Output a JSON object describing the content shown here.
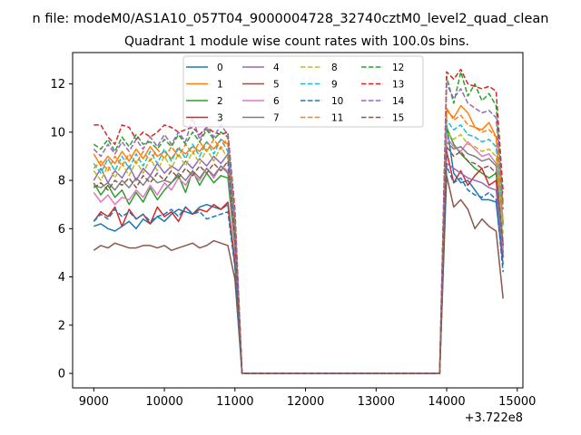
{
  "figure": {
    "suptitle": "n file: modeM0/AS1A10_057T04_9000004728_32740cztM0_level2_quad_clean",
    "offset_text": "+3.722e8"
  },
  "chart_data": {
    "type": "line",
    "title": "Quadrant 1 module wise count rates with 100.0s bins.",
    "xlabel": "",
    "ylabel": "",
    "x_offset": 372200000,
    "xlim": [
      8700,
      15080
    ],
    "ylim": [
      -0.6,
      13.3
    ],
    "xticks": [
      9000,
      10000,
      11000,
      12000,
      13000,
      14000,
      15000
    ],
    "yticks": [
      0,
      2,
      4,
      6,
      8,
      10,
      12
    ],
    "grid": false,
    "legend": "top-center",
    "x_times_a": [
      9000,
      9100,
      9200,
      9300,
      9400,
      9500,
      9600,
      9700,
      9800,
      9900,
      10000,
      10100,
      10200,
      10300,
      10400,
      10500,
      10600,
      10700,
      10800,
      10900,
      11000,
      11100
    ],
    "x_times_b": [
      13800,
      13900,
      14000,
      14100,
      14200,
      14300,
      14400,
      14500,
      14600,
      14700,
      14800
    ],
    "series": [
      {
        "name": "0",
        "color": "#1f77b4",
        "dash": false,
        "a": [
          6.1,
          6.2,
          6.0,
          5.9,
          6.1,
          6.3,
          6.0,
          6.4,
          6.2,
          6.5,
          6.3,
          6.6,
          6.8,
          6.7,
          6.6,
          6.9,
          7.0,
          6.9,
          6.8,
          7.0,
          4.5,
          0
        ],
        "b": [
          0,
          0,
          10.3,
          8.3,
          7.9,
          8.0,
          7.6,
          7.2,
          7.2,
          7.1,
          4.5
        ]
      },
      {
        "name": "1",
        "color": "#ff7f0e",
        "dash": false,
        "a": [
          9.1,
          8.6,
          9.0,
          8.7,
          9.2,
          8.8,
          9.3,
          8.9,
          9.4,
          9.0,
          9.2,
          8.9,
          9.3,
          9.1,
          9.4,
          9.2,
          9.6,
          9.3,
          9.7,
          9.5,
          6.2,
          0
        ],
        "b": [
          0,
          0,
          10.9,
          10.6,
          11.1,
          10.8,
          10.2,
          10.1,
          10.4,
          9.8,
          6.2
        ]
      },
      {
        "name": "2",
        "color": "#2ca02c",
        "dash": false,
        "a": [
          7.9,
          7.4,
          7.8,
          7.3,
          7.6,
          7.0,
          7.5,
          7.1,
          7.7,
          7.2,
          7.6,
          7.9,
          8.2,
          7.5,
          8.4,
          7.8,
          8.3,
          7.9,
          8.2,
          8.1,
          5.2,
          0
        ],
        "b": [
          0,
          0,
          10.2,
          9.5,
          9.1,
          8.8,
          8.5,
          8.3,
          8.1,
          8.3,
          5.0
        ]
      },
      {
        "name": "3",
        "color": "#d62728",
        "dash": false,
        "a": [
          6.3,
          6.7,
          6.5,
          6.9,
          6.1,
          6.8,
          6.4,
          6.6,
          6.2,
          6.9,
          6.5,
          6.7,
          6.3,
          6.9,
          6.6,
          6.8,
          6.7,
          7.0,
          6.8,
          7.1,
          4.6,
          0
        ],
        "b": [
          0,
          0,
          9.2,
          7.9,
          8.4,
          7.8,
          8.2,
          8.5,
          7.8,
          8.0,
          4.8
        ]
      },
      {
        "name": "4",
        "color": "#9467bd",
        "dash": false,
        "a": [
          8.0,
          8.5,
          7.9,
          8.4,
          8.1,
          8.6,
          8.0,
          8.5,
          8.2,
          8.7,
          8.3,
          8.6,
          8.4,
          8.8,
          8.5,
          8.9,
          8.6,
          9.0,
          8.7,
          9.1,
          5.8,
          0
        ],
        "b": [
          0,
          0,
          8.7,
          8.5,
          8.3,
          8.1,
          8.0,
          7.9,
          7.7,
          7.6,
          5.0
        ]
      },
      {
        "name": "5",
        "color": "#8c564b",
        "dash": false,
        "a": [
          5.1,
          5.3,
          5.2,
          5.4,
          5.3,
          5.2,
          5.2,
          5.3,
          5.3,
          5.2,
          5.3,
          5.1,
          5.2,
          5.3,
          5.4,
          5.2,
          5.3,
          5.5,
          5.4,
          5.3,
          3.9,
          0
        ],
        "b": [
          0,
          0,
          8.2,
          6.9,
          7.2,
          6.8,
          6.0,
          6.4,
          6.1,
          5.9,
          3.1
        ]
      },
      {
        "name": "6",
        "color": "#e377c2",
        "dash": false,
        "a": [
          7.5,
          7.1,
          7.4,
          7.0,
          7.3,
          7.2,
          7.6,
          7.3,
          7.8,
          7.4,
          7.9,
          7.6,
          8.1,
          7.8,
          8.3,
          8.0,
          8.5,
          8.1,
          8.6,
          8.4,
          5.3,
          0
        ],
        "b": [
          0,
          0,
          9.8,
          9.4,
          9.2,
          9.6,
          9.3,
          9.0,
          9.1,
          8.7,
          5.2
        ]
      },
      {
        "name": "7",
        "color": "#7f7f7f",
        "dash": false,
        "a": [
          7.8,
          7.7,
          7.9,
          7.6,
          8.0,
          7.7,
          8.1,
          7.8,
          8.2,
          7.9,
          8.0,
          7.9,
          8.3,
          8.0,
          8.4,
          8.1,
          8.5,
          8.2,
          8.6,
          8.3,
          5.5,
          0
        ],
        "b": [
          0,
          0,
          9.6,
          9.3,
          9.4,
          9.1,
          9.0,
          8.8,
          8.9,
          8.6,
          5.4
        ]
      },
      {
        "name": "8",
        "color": "#bcbd22",
        "dash": true,
        "a": [
          8.4,
          8.0,
          8.6,
          8.1,
          8.7,
          8.2,
          8.8,
          8.3,
          8.9,
          8.4,
          9.0,
          8.5,
          9.1,
          8.6,
          9.2,
          8.7,
          9.3,
          8.8,
          9.4,
          8.9,
          5.9,
          0
        ],
        "b": [
          0,
          0,
          10.0,
          9.7,
          9.9,
          9.5,
          9.4,
          9.2,
          9.3,
          9.0,
          5.8
        ]
      },
      {
        "name": "9",
        "color": "#17becf",
        "dash": true,
        "a": [
          8.7,
          8.3,
          8.9,
          8.4,
          9.0,
          8.5,
          9.1,
          8.6,
          9.2,
          8.7,
          9.3,
          8.8,
          9.4,
          8.9,
          9.5,
          9.0,
          9.6,
          9.1,
          9.7,
          9.2,
          6.0,
          0
        ],
        "b": [
          0,
          0,
          10.5,
          10.1,
          10.3,
          9.9,
          9.8,
          9.6,
          9.7,
          9.4,
          6.1
        ]
      },
      {
        "name": "10",
        "color": "#1f77b4",
        "dash": true,
        "a": [
          6.3,
          6.6,
          6.4,
          6.8,
          6.5,
          6.7,
          6.4,
          6.6,
          6.3,
          6.5,
          6.6,
          6.8,
          6.5,
          6.9,
          6.6,
          6.7,
          6.4,
          6.5,
          6.6,
          6.7,
          4.4,
          0
        ],
        "b": [
          0,
          0,
          8.6,
          7.9,
          8.1,
          7.6,
          7.4,
          7.3,
          7.5,
          7.2,
          4.2
        ]
      },
      {
        "name": "11",
        "color": "#ff7f0e",
        "dash": true,
        "a": [
          8.5,
          8.8,
          8.4,
          9.0,
          8.6,
          9.1,
          8.7,
          9.2,
          8.8,
          9.3,
          8.9,
          9.4,
          9.0,
          9.5,
          9.1,
          9.6,
          9.2,
          9.7,
          9.3,
          9.8,
          6.4,
          0
        ],
        "b": [
          0,
          0,
          11.0,
          10.5,
          10.7,
          10.3,
          10.2,
          10.0,
          10.1,
          9.8,
          6.3
        ]
      },
      {
        "name": "12",
        "color": "#2ca02c",
        "dash": true,
        "a": [
          9.5,
          9.3,
          9.7,
          9.2,
          9.8,
          9.4,
          9.9,
          9.5,
          9.6,
          9.3,
          9.7,
          9.4,
          9.9,
          9.5,
          10.0,
          9.6,
          10.1,
          9.7,
          10.0,
          9.8,
          6.5,
          0
        ],
        "b": [
          0,
          0,
          12.3,
          11.2,
          12.5,
          11.5,
          12.0,
          11.3,
          11.6,
          11.1,
          7.0
        ]
      },
      {
        "name": "13",
        "color": "#d62728",
        "dash": true,
        "a": [
          10.3,
          10.3,
          9.8,
          9.5,
          10.3,
          10.2,
          9.7,
          10.0,
          9.8,
          10.0,
          10.3,
          10.2,
          10.0,
          10.1,
          10.2,
          9.9,
          10.2,
          10.0,
          9.9,
          10.0,
          6.8,
          0
        ],
        "b": [
          0,
          0,
          12.5,
          12.2,
          12.6,
          12.0,
          11.9,
          11.8,
          11.9,
          11.7,
          7.5
        ]
      },
      {
        "name": "14",
        "color": "#9467bd",
        "dash": true,
        "a": [
          9.3,
          9.0,
          9.5,
          9.1,
          9.6,
          9.2,
          9.7,
          9.3,
          9.8,
          9.4,
          9.9,
          9.5,
          10.0,
          9.6,
          10.6,
          9.7,
          10.2,
          9.8,
          10.3,
          9.9,
          6.6,
          0
        ],
        "b": [
          0,
          0,
          12.0,
          11.4,
          11.8,
          11.2,
          11.0,
          10.8,
          10.9,
          10.6,
          6.8
        ]
      },
      {
        "name": "15",
        "color": "#8c564b",
        "dash": true,
        "a": [
          7.7,
          7.9,
          7.6,
          8.0,
          7.8,
          8.1,
          7.7,
          8.2,
          7.9,
          8.3,
          8.0,
          8.4,
          8.1,
          8.5,
          8.2,
          8.6,
          8.3,
          8.7,
          8.4,
          8.8,
          5.6,
          0
        ],
        "b": [
          0,
          0,
          9.4,
          9.0,
          9.2,
          8.8,
          8.7,
          8.5,
          8.6,
          8.3,
          5.3
        ]
      }
    ]
  }
}
